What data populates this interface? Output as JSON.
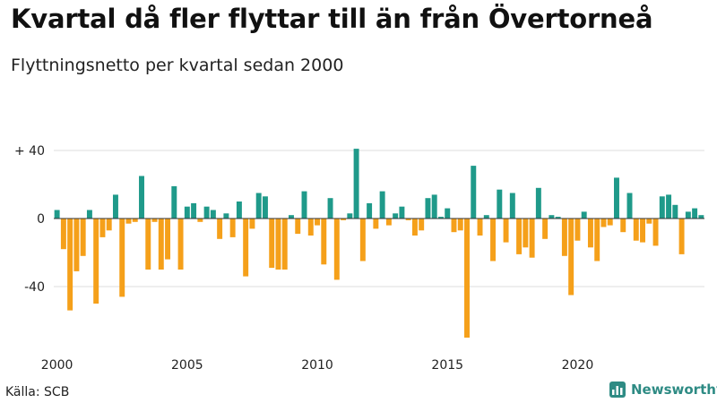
{
  "header": {
    "title": "Kvartal då fler flyttar till än från Övertorneå",
    "subtitle": "Flyttningsnetto per kvartal sedan 2000"
  },
  "footer": {
    "source": "Källa: SCB",
    "brand": "Newsworthy"
  },
  "colors": {
    "positive": "#1f9a8a",
    "negative": "#f5a01a",
    "grid": "#dddddd",
    "zero_line": "#333333",
    "brand": "#2e8b84"
  },
  "chart_data": {
    "type": "bar",
    "title": "Kvartal då fler flyttar till än från Övertorneå",
    "subtitle": "Flyttningsnetto per kvartal sedan 2000",
    "xlabel": "",
    "ylabel": "",
    "start_year": 2000,
    "periods_per_year": 4,
    "x_ticks": [
      "2000",
      "2005",
      "2010",
      "2015",
      "2020"
    ],
    "y_ticks": [
      {
        "value": 40,
        "label": "+ 40"
      },
      {
        "value": 0,
        "label": "0"
      },
      {
        "value": -40,
        "label": "-40"
      }
    ],
    "ylim": [
      -70,
      45
    ],
    "grid": true,
    "values": [
      5,
      -18,
      -54,
      -31,
      -22,
      5,
      -50,
      -11,
      -7,
      14,
      -46,
      -3,
      -2,
      25,
      -30,
      -2,
      -30,
      -24,
      19,
      -30,
      7,
      9,
      -2,
      7,
      5,
      -12,
      3,
      -11,
      10,
      -34,
      -6,
      15,
      13,
      -29,
      -30,
      -30,
      2,
      -9,
      16,
      -10,
      -4,
      -27,
      12,
      -36,
      -1,
      3,
      41,
      -25,
      9,
      -6,
      16,
      -4,
      3,
      7,
      -1,
      -10,
      -7,
      12,
      14,
      1,
      6,
      -8,
      -7,
      -70,
      31,
      -10,
      2,
      -25,
      17,
      -14,
      15,
      -21,
      -17,
      -23,
      18,
      -12,
      2,
      1,
      -22,
      -45,
      -13,
      4,
      -17,
      -25,
      -5,
      -4,
      24,
      -8,
      15,
      -13,
      -14,
      -3,
      -16,
      13,
      14,
      8,
      -21,
      4,
      6,
      2
    ]
  }
}
